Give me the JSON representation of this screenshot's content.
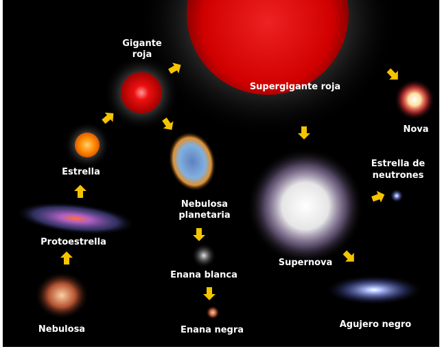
{
  "nodes": [
    {
      "lines": [
        "Nebulosa"
      ]
    },
    {
      "lines": [
        "Protoestrella"
      ]
    },
    {
      "lines": [
        "Estrella"
      ]
    },
    {
      "lines": [
        "Gigante",
        "roja"
      ]
    },
    {
      "lines": [
        "Supergigante roja"
      ]
    },
    {
      "lines": [
        "Nova"
      ]
    },
    {
      "lines": [
        "Nebulosa",
        "planetaria"
      ]
    },
    {
      "lines": [
        "Enana blanca"
      ]
    },
    {
      "lines": [
        "Enana negra"
      ]
    },
    {
      "lines": [
        "Supernova"
      ]
    },
    {
      "lines": [
        "Estrella de",
        "neutrones"
      ]
    },
    {
      "lines": [
        "Agujero negro"
      ]
    }
  ]
}
